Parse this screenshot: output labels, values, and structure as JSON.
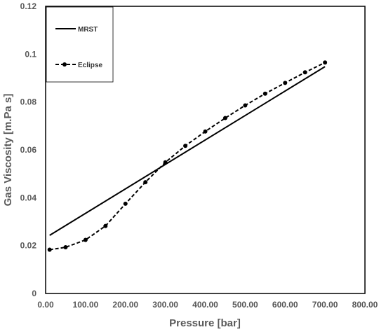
{
  "chart_data": {
    "type": "line",
    "xlabel": "Pressure [bar]",
    "ylabel": "Gas Viscosity [m.Pa s]",
    "xlim": [
      0,
      800
    ],
    "ylim": [
      0,
      0.12
    ],
    "x_ticks": [
      "0.00",
      "100.00",
      "200.00",
      "300.00",
      "400.00",
      "500.00",
      "600.00",
      "700.00",
      "800.00"
    ],
    "y_ticks": [
      "0",
      "0.02",
      "0.04",
      "0.06",
      "0.08",
      "0.1",
      "0.12"
    ],
    "grid": false,
    "legend_position": "top-left",
    "series": [
      {
        "name": "MRST",
        "style": "solid",
        "color": "#000000",
        "x": [
          10,
          700
        ],
        "y": [
          0.0243,
          0.0948
        ]
      },
      {
        "name": "Eclipse",
        "style": "dashed-markers",
        "color": "#000000",
        "x": [
          10,
          50,
          100,
          150,
          200,
          250,
          300,
          350,
          400,
          450,
          500,
          550,
          600,
          650,
          700
        ],
        "y": [
          0.0183,
          0.0193,
          0.0224,
          0.0282,
          0.0375,
          0.0465,
          0.0548,
          0.0617,
          0.0677,
          0.0733,
          0.0786,
          0.0835,
          0.088,
          0.0924,
          0.0965
        ]
      }
    ]
  }
}
